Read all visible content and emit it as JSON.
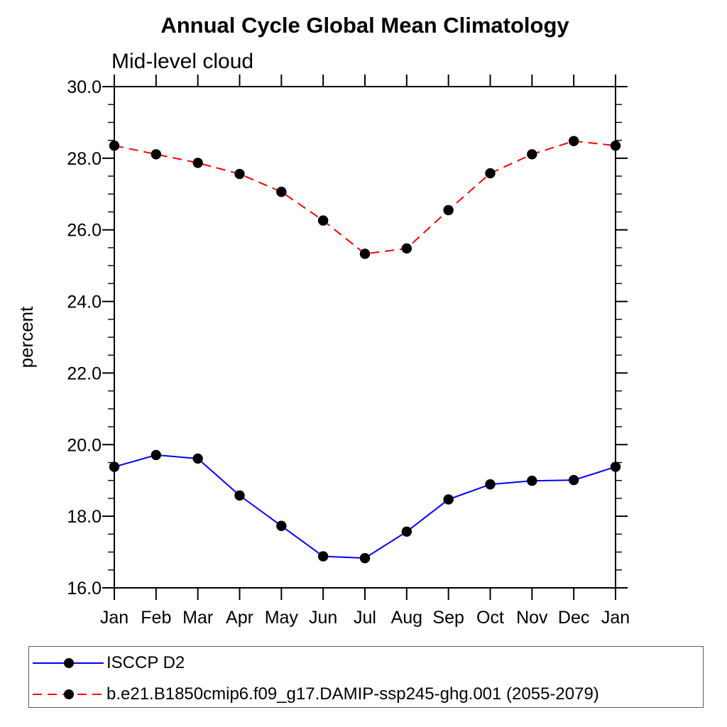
{
  "header": {
    "title": "Annual Cycle Global Mean Climatology",
    "subtitle": "Mid-level cloud"
  },
  "colors": {
    "axis": "#000000",
    "background": "#ffffff",
    "marker": "#000000",
    "series1": "#0000ff",
    "series2": "#ff0000",
    "legend_border": "#5a5a5a"
  },
  "chart_data": {
    "type": "line",
    "title": "Annual Cycle Global Mean Climatology",
    "subtitle": "Mid-level cloud",
    "xlabel": "",
    "ylabel": "percent",
    "categories": [
      "Jan",
      "Feb",
      "Mar",
      "Apr",
      "May",
      "Jun",
      "Jul",
      "Aug",
      "Sep",
      "Oct",
      "Nov",
      "Dec",
      "Jan"
    ],
    "ylim": [
      16.0,
      30.0
    ],
    "ytick_labels": [
      "16.0",
      "18.0",
      "20.0",
      "22.0",
      "24.0",
      "26.0",
      "28.0",
      "30.0"
    ],
    "ytick_major_interval": 2.0,
    "ytick_minor_interval": 0.5,
    "grid": false,
    "legend_position": "bottom-left",
    "series": [
      {
        "name": "ISCCP D2",
        "color": "#0000ff",
        "line_style": "solid",
        "marker": "circle",
        "marker_color": "#000000",
        "values": [
          19.38,
          19.71,
          19.61,
          18.58,
          17.73,
          16.88,
          16.83,
          17.57,
          18.47,
          18.89,
          18.99,
          19.01,
          19.38
        ]
      },
      {
        "name": "b.e21.B1850cmip6.f09_g17.DAMIP-ssp245-ghg.001 (2055-2079)",
        "color": "#ff0000",
        "line_style": "dashed",
        "marker": "circle",
        "marker_color": "#000000",
        "values": [
          28.35,
          28.11,
          27.87,
          27.56,
          27.06,
          26.26,
          25.33,
          25.48,
          26.55,
          27.58,
          28.11,
          28.48,
          28.35
        ]
      }
    ]
  }
}
